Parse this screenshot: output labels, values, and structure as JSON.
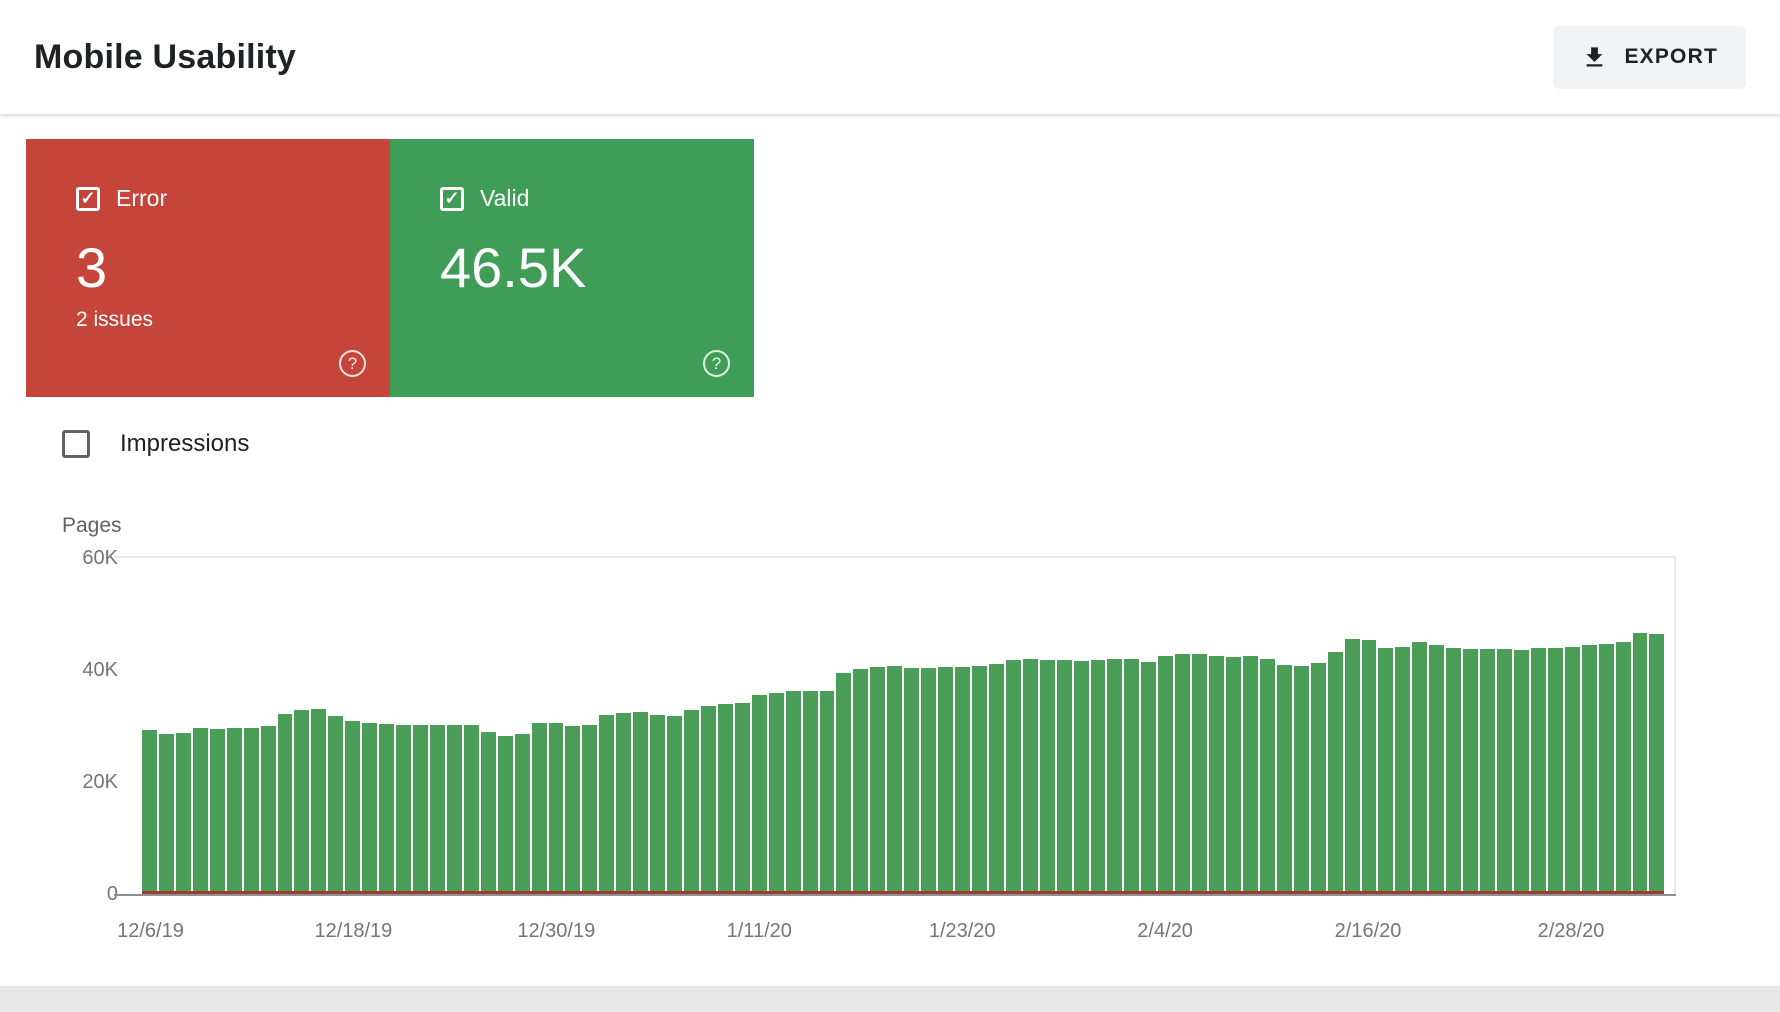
{
  "header": {
    "title": "Mobile Usability",
    "export_label": "EXPORT"
  },
  "summary_cards": {
    "error": {
      "label": "Error",
      "value": "3",
      "subtitle": "2 issues",
      "checked": true,
      "color": "#c5453a"
    },
    "valid": {
      "label": "Valid",
      "value": "46.5K",
      "checked": true,
      "color": "#3f9d58"
    }
  },
  "impressions_toggle": {
    "label": "Impressions",
    "checked": false
  },
  "chart_data": {
    "type": "bar",
    "title": "",
    "ylabel": "Pages",
    "xlabel": "",
    "ylim": [
      0,
      60000
    ],
    "grid": "top gridline and baseline only, right border line",
    "legend": "none (series toggled via Error/Valid cards)",
    "y_ticks": [
      {
        "label": "60K",
        "value": 60000
      },
      {
        "label": "40K",
        "value": 40000
      },
      {
        "label": "20K",
        "value": 20000
      },
      {
        "label": "0",
        "value": 0
      }
    ],
    "x_tick_labels": [
      "12/6/19",
      "12/18/19",
      "12/30/19",
      "1/11/20",
      "1/23/20",
      "2/4/20",
      "2/16/20",
      "2/28/20"
    ],
    "x_tick_every": 12,
    "series": [
      {
        "name": "Valid",
        "color": "#4a9e58",
        "values": [
          29300,
          28600,
          28700,
          29600,
          29500,
          29600,
          29700,
          30000,
          32200,
          32900,
          33000,
          31800,
          30900,
          30500,
          30300,
          30100,
          30100,
          30200,
          30100,
          30200,
          29000,
          28200,
          28600,
          30500,
          30600,
          30000,
          30100,
          32000,
          32400,
          32500,
          32000,
          31800,
          32900,
          33600,
          33900,
          34100,
          35600,
          35900,
          36200,
          36300,
          36200,
          39500,
          40100,
          40600,
          40800,
          40400,
          40400,
          40600,
          40600,
          40700,
          41000,
          41800,
          42000,
          41800,
          41700,
          41600,
          41700,
          42000,
          41900,
          41500,
          42500,
          42900,
          42800,
          42500,
          42400,
          42500,
          42000,
          40900,
          40700,
          41200,
          43200,
          45600,
          45400,
          43900,
          44100,
          45000,
          44400,
          43900,
          43700,
          43800,
          43700,
          43600,
          43900,
          44000,
          44100,
          44400,
          44600,
          45000,
          46600,
          46500
        ]
      },
      {
        "name": "Error",
        "color": "#a23b2c",
        "constant_value": 3
      }
    ]
  }
}
